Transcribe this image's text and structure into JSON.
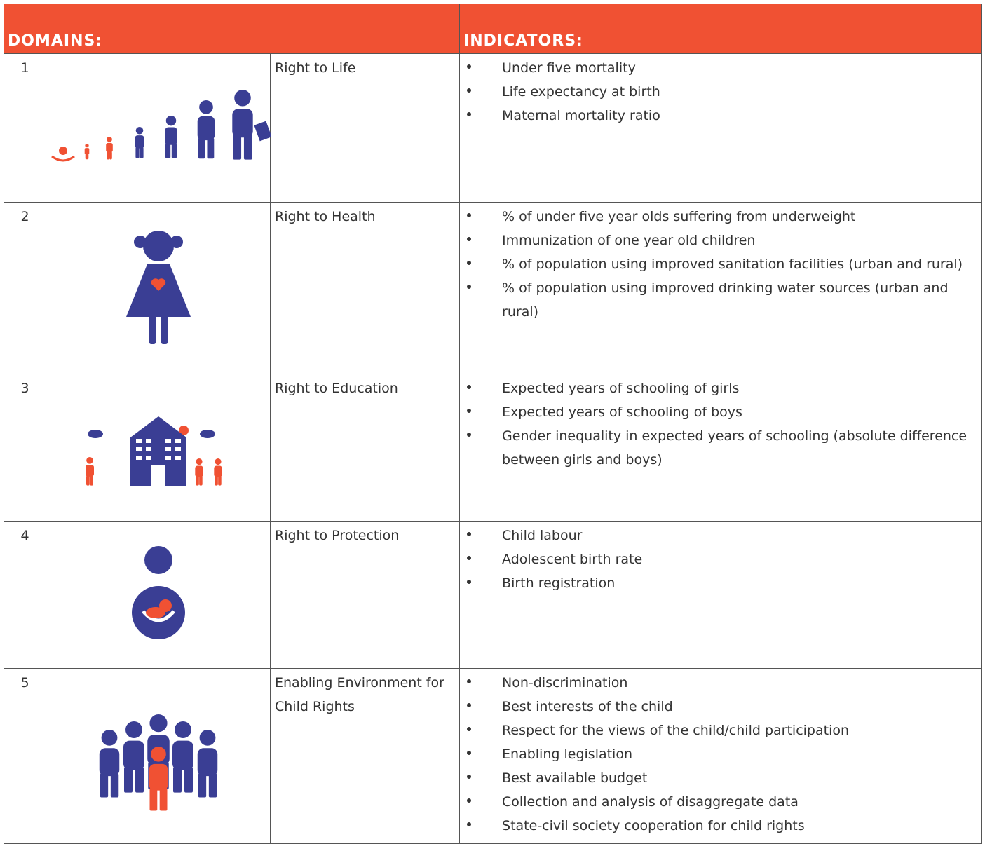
{
  "header": {
    "domains": "DOMAINS:",
    "indicators": "INDICATORS:"
  },
  "rows": [
    {
      "number": "1",
      "domain": "Right to Life",
      "indicators": [
        "Under five mortality",
        "Life expectancy at birth",
        "Maternal mortality ratio"
      ]
    },
    {
      "number": "2",
      "domain": "Right to Health",
      "indicators": [
        "% of under five year olds suffering from underweight",
        "Immunization of one year old children",
        "% of population using improved sanitation facilities (urban and rural)",
        "% of population using improved drinking water sources (urban and rural)"
      ]
    },
    {
      "number": "3",
      "domain": "Right to Education",
      "indicators": [
        "Expected years of schooling of girls",
        "Expected years of schooling of boys",
        "Gender inequality in expected years of schooling (absolute difference between girls and boys)"
      ]
    },
    {
      "number": "4",
      "domain": "Right to Protection",
      "indicators": [
        "Child labour",
        "Adolescent birth rate",
        "Birth registration"
      ]
    },
    {
      "number": "5",
      "domain": "Enabling Environment for Child Rights",
      "indicators": [
        "Non-discrimination",
        "Best interests of the child",
        "Respect for the views of the child/child participation",
        "Enabling legislation",
        "Best available budget",
        "Collection and analysis of disaggregate data",
        "State-civil society cooperation for child rights"
      ]
    }
  ]
}
